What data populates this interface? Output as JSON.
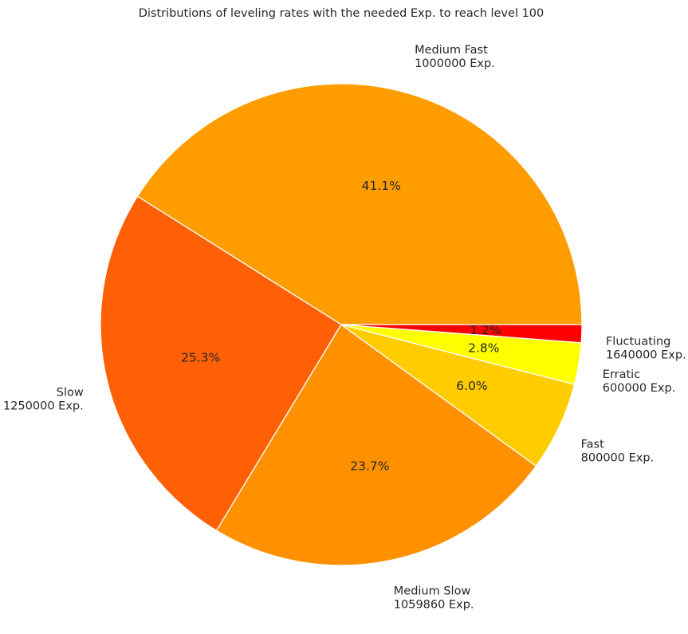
{
  "chart_data": {
    "type": "pie",
    "title": "Distributions of leveling rates with the needed Exp. to reach level 100",
    "slices": [
      {
        "name": "Medium Fast",
        "exp": "1000000 Exp.",
        "percent": 41.1,
        "percent_label": "41.1%",
        "color": "#FF9C00"
      },
      {
        "name": "Slow",
        "exp": "1250000 Exp.",
        "percent": 25.3,
        "percent_label": "25.3%",
        "color": "#FF6005"
      },
      {
        "name": "Medium Slow",
        "exp": "1059860 Exp.",
        "percent": 23.7,
        "percent_label": "23.7%",
        "color": "#FF9000"
      },
      {
        "name": "Fast",
        "exp": "800000 Exp.",
        "percent": 6.0,
        "percent_label": "6.0%",
        "color": "#FFCC00"
      },
      {
        "name": "Erratic",
        "exp": "600000 Exp.",
        "percent": 2.8,
        "percent_label": "2.8%",
        "color": "#FFFF00"
      },
      {
        "name": "Fluctuating",
        "exp": "1640000 Exp.",
        "percent": 1.2,
        "percent_label": "1.2%",
        "color": "#FF0000"
      }
    ],
    "start_angle_deg": 0,
    "direction": "counterclockwise",
    "edge_color": "#FFFFFF",
    "legend": "none"
  }
}
